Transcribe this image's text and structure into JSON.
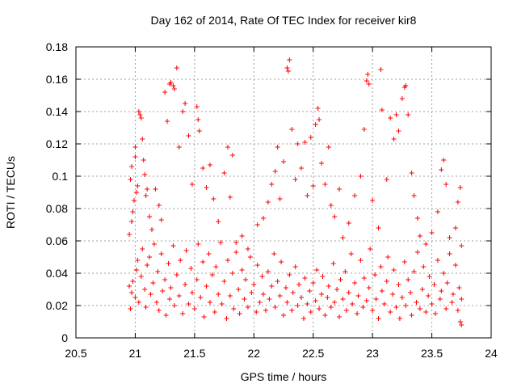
{
  "chart_data": {
    "type": "scatter",
    "title": "Day 162 of 2014, Rate Of TEC Index for receiver kir8",
    "xlabel": "GPS time / hours",
    "ylabel": "ROTI / TECUs",
    "xlim": [
      20.5,
      24
    ],
    "ylim": [
      0,
      0.18
    ],
    "x_ticks": [
      20.5,
      21,
      21.5,
      22,
      22.5,
      23,
      23.5,
      24
    ],
    "x_tick_labels": [
      "20.5",
      "21",
      "21.5",
      "22",
      "22.5",
      "23",
      "23.5",
      "24"
    ],
    "y_ticks": [
      0,
      0.02,
      0.04,
      0.06,
      0.08,
      0.1,
      0.12,
      0.14,
      0.16,
      0.18
    ],
    "y_tick_labels": [
      "0",
      "0.02",
      "0.04",
      "0.06",
      "0.08",
      "0.1",
      "0.12",
      "0.14",
      "0.16",
      "0.18"
    ],
    "grid": true,
    "marker": "+",
    "color": "#ff0000",
    "series": [
      {
        "name": "ROTI",
        "points": [
          [
            20.95,
            0.064
          ],
          [
            20.96,
            0.098
          ],
          [
            20.97,
            0.106
          ],
          [
            20.97,
            0.072
          ],
          [
            20.98,
            0.078
          ],
          [
            20.99,
            0.085
          ],
          [
            21.0,
            0.118
          ],
          [
            21.0,
            0.112
          ],
          [
            21.01,
            0.09
          ],
          [
            21.02,
            0.094
          ],
          [
            21.03,
            0.14
          ],
          [
            21.04,
            0.138
          ],
          [
            21.05,
            0.136
          ],
          [
            21.06,
            0.123
          ],
          [
            21.07,
            0.11
          ],
          [
            21.08,
            0.101
          ],
          [
            21.09,
            0.088
          ],
          [
            21.1,
            0.092
          ],
          [
            21.12,
            0.075
          ],
          [
            21.14,
            0.067
          ],
          [
            21.17,
            0.092
          ],
          [
            21.2,
            0.082
          ],
          [
            21.22,
            0.073
          ],
          [
            21.25,
            0.152
          ],
          [
            21.27,
            0.134
          ],
          [
            21.29,
            0.157
          ],
          [
            21.3,
            0.158
          ],
          [
            21.32,
            0.156
          ],
          [
            21.33,
            0.154
          ],
          [
            21.35,
            0.167
          ],
          [
            21.37,
            0.118
          ],
          [
            21.4,
            0.14
          ],
          [
            21.42,
            0.145
          ],
          [
            21.45,
            0.125
          ],
          [
            21.48,
            0.095
          ],
          [
            21.52,
            0.143
          ],
          [
            21.53,
            0.135
          ],
          [
            21.54,
            0.128
          ],
          [
            21.57,
            0.105
          ],
          [
            21.6,
            0.093
          ],
          [
            21.63,
            0.107
          ],
          [
            21.66,
            0.086
          ],
          [
            21.7,
            0.072
          ],
          [
            21.75,
            0.102
          ],
          [
            21.78,
            0.118
          ],
          [
            21.8,
            0.087
          ],
          [
            21.82,
            0.113
          ],
          [
            21.85,
            0.059
          ],
          [
            21.9,
            0.063
          ],
          [
            21.95,
            0.055
          ],
          [
            22.03,
            0.07
          ],
          [
            22.08,
            0.074
          ],
          [
            22.12,
            0.084
          ],
          [
            22.15,
            0.095
          ],
          [
            22.18,
            0.103
          ],
          [
            22.2,
            0.118
          ],
          [
            22.22,
            0.086
          ],
          [
            22.25,
            0.109
          ],
          [
            22.28,
            0.167
          ],
          [
            22.29,
            0.165
          ],
          [
            22.3,
            0.172
          ],
          [
            22.32,
            0.129
          ],
          [
            22.35,
            0.098
          ],
          [
            22.37,
            0.12
          ],
          [
            22.4,
            0.105
          ],
          [
            22.43,
            0.121
          ],
          [
            22.45,
            0.088
          ],
          [
            22.48,
            0.124
          ],
          [
            22.5,
            0.094
          ],
          [
            22.52,
            0.132
          ],
          [
            22.54,
            0.142
          ],
          [
            22.55,
            0.135
          ],
          [
            22.57,
            0.108
          ],
          [
            22.6,
            0.095
          ],
          [
            22.63,
            0.118
          ],
          [
            22.65,
            0.082
          ],
          [
            22.68,
            0.075
          ],
          [
            22.72,
            0.092
          ],
          [
            22.75,
            0.062
          ],
          [
            22.8,
            0.071
          ],
          [
            22.85,
            0.088
          ],
          [
            22.9,
            0.1
          ],
          [
            22.93,
            0.129
          ],
          [
            22.95,
            0.159
          ],
          [
            22.96,
            0.163
          ],
          [
            22.97,
            0.157
          ],
          [
            23.0,
            0.085
          ],
          [
            23.05,
            0.068
          ],
          [
            23.07,
            0.166
          ],
          [
            23.08,
            0.141
          ],
          [
            23.12,
            0.098
          ],
          [
            23.15,
            0.136
          ],
          [
            23.18,
            0.123
          ],
          [
            23.2,
            0.138
          ],
          [
            23.22,
            0.128
          ],
          [
            23.25,
            0.148
          ],
          [
            23.27,
            0.155
          ],
          [
            23.28,
            0.156
          ],
          [
            23.3,
            0.138
          ],
          [
            23.33,
            0.102
          ],
          [
            23.35,
            0.088
          ],
          [
            23.38,
            0.074
          ],
          [
            23.4,
            0.063
          ],
          [
            23.45,
            0.058
          ],
          [
            23.5,
            0.065
          ],
          [
            23.55,
            0.078
          ],
          [
            23.58,
            0.104
          ],
          [
            23.6,
            0.11
          ],
          [
            23.62,
            0.095
          ],
          [
            23.65,
            0.062
          ],
          [
            23.7,
            0.068
          ],
          [
            23.72,
            0.084
          ],
          [
            23.74,
            0.093
          ],
          [
            23.75,
            0.057
          ],
          [
            20.95,
            0.032
          ],
          [
            20.96,
            0.018
          ],
          [
            20.97,
            0.028
          ],
          [
            20.98,
            0.035
          ],
          [
            21.0,
            0.025
          ],
          [
            21.01,
            0.042
          ],
          [
            21.02,
            0.048
          ],
          [
            21.03,
            0.022
          ],
          [
            21.05,
            0.038
          ],
          [
            21.06,
            0.055
          ],
          [
            21.08,
            0.03
          ],
          [
            21.09,
            0.019
          ],
          [
            21.1,
            0.045
          ],
          [
            21.12,
            0.05
          ],
          [
            21.13,
            0.027
          ],
          [
            21.15,
            0.034
          ],
          [
            21.16,
            0.058
          ],
          [
            21.18,
            0.022
          ],
          [
            21.19,
            0.041
          ],
          [
            21.2,
            0.017
          ],
          [
            21.22,
            0.052
          ],
          [
            21.23,
            0.029
          ],
          [
            21.25,
            0.036
          ],
          [
            21.26,
            0.014
          ],
          [
            21.28,
            0.046
          ],
          [
            21.29,
            0.024
          ],
          [
            21.3,
            0.031
          ],
          [
            21.32,
            0.057
          ],
          [
            21.33,
            0.02
          ],
          [
            21.35,
            0.039
          ],
          [
            21.37,
            0.026
          ],
          [
            21.38,
            0.048
          ],
          [
            21.4,
            0.015
          ],
          [
            21.42,
            0.033
          ],
          [
            21.43,
            0.054
          ],
          [
            21.45,
            0.021
          ],
          [
            21.47,
            0.043
          ],
          [
            21.48,
            0.028
          ],
          [
            21.5,
            0.018
          ],
          [
            21.52,
            0.036
          ],
          [
            21.53,
            0.058
          ],
          [
            21.55,
            0.025
          ],
          [
            21.57,
            0.047
          ],
          [
            21.58,
            0.013
          ],
          [
            21.6,
            0.032
          ],
          [
            21.62,
            0.052
          ],
          [
            21.63,
            0.022
          ],
          [
            21.65,
            0.039
          ],
          [
            21.67,
            0.016
          ],
          [
            21.68,
            0.044
          ],
          [
            21.7,
            0.027
          ],
          [
            21.72,
            0.059
          ],
          [
            21.73,
            0.021
          ],
          [
            21.75,
            0.035
          ],
          [
            21.77,
            0.012
          ],
          [
            21.78,
            0.048
          ],
          [
            21.8,
            0.026
          ],
          [
            21.82,
            0.04
          ],
          [
            21.83,
            0.018
          ],
          [
            21.85,
            0.053
          ],
          [
            21.87,
            0.03
          ],
          [
            21.88,
            0.015
          ],
          [
            21.9,
            0.042
          ],
          [
            21.92,
            0.024
          ],
          [
            21.93,
            0.036
          ],
          [
            21.95,
            0.019
          ],
          [
            21.97,
            0.05
          ],
          [
            21.98,
            0.028
          ],
          [
            22.0,
            0.033
          ],
          [
            22.02,
            0.016
          ],
          [
            22.03,
            0.045
          ],
          [
            22.05,
            0.022
          ],
          [
            22.07,
            0.038
          ],
          [
            22.08,
            0.027
          ],
          [
            22.1,
            0.017
          ],
          [
            22.12,
            0.041
          ],
          [
            22.13,
            0.024
          ],
          [
            22.15,
            0.032
          ],
          [
            22.17,
            0.052
          ],
          [
            22.18,
            0.019
          ],
          [
            22.2,
            0.035
          ],
          [
            22.22,
            0.026
          ],
          [
            22.23,
            0.047
          ],
          [
            22.25,
            0.014
          ],
          [
            22.27,
            0.031
          ],
          [
            22.28,
            0.022
          ],
          [
            22.3,
            0.039
          ],
          [
            22.32,
            0.017
          ],
          [
            22.33,
            0.028
          ],
          [
            22.35,
            0.044
          ],
          [
            22.37,
            0.02
          ],
          [
            22.38,
            0.033
          ],
          [
            22.4,
            0.025
          ],
          [
            22.42,
            0.012
          ],
          [
            22.43,
            0.037
          ],
          [
            22.45,
            0.021
          ],
          [
            22.47,
            0.029
          ],
          [
            22.48,
            0.016
          ],
          [
            22.5,
            0.034
          ],
          [
            22.52,
            0.023
          ],
          [
            22.53,
            0.042
          ],
          [
            22.55,
            0.018
          ],
          [
            22.57,
            0.027
          ],
          [
            22.58,
            0.038
          ],
          [
            22.6,
            0.014
          ],
          [
            22.62,
            0.025
          ],
          [
            22.63,
            0.032
          ],
          [
            22.65,
            0.019
          ],
          [
            22.67,
            0.046
          ],
          [
            22.68,
            0.022
          ],
          [
            22.7,
            0.03
          ],
          [
            22.72,
            0.013
          ],
          [
            22.73,
            0.036
          ],
          [
            22.75,
            0.024
          ],
          [
            22.77,
            0.041
          ],
          [
            22.78,
            0.017
          ],
          [
            22.8,
            0.028
          ],
          [
            22.82,
            0.052
          ],
          [
            22.83,
            0.021
          ],
          [
            22.85,
            0.034
          ],
          [
            22.87,
            0.015
          ],
          [
            22.88,
            0.026
          ],
          [
            22.9,
            0.048
          ],
          [
            22.92,
            0.019
          ],
          [
            22.93,
            0.037
          ],
          [
            22.95,
            0.023
          ],
          [
            22.97,
            0.031
          ],
          [
            22.98,
            0.055
          ],
          [
            23.0,
            0.017
          ],
          [
            23.02,
            0.039
          ],
          [
            23.03,
            0.024
          ],
          [
            23.05,
            0.012
          ],
          [
            23.07,
            0.044
          ],
          [
            23.08,
            0.029
          ],
          [
            23.1,
            0.021
          ],
          [
            23.12,
            0.035
          ],
          [
            23.13,
            0.05
          ],
          [
            23.15,
            0.016
          ],
          [
            23.17,
            0.027
          ],
          [
            23.18,
            0.042
          ],
          [
            23.2,
            0.019
          ],
          [
            23.22,
            0.033
          ],
          [
            23.23,
            0.012
          ],
          [
            23.25,
            0.025
          ],
          [
            23.27,
            0.047
          ],
          [
            23.28,
            0.02
          ],
          [
            23.3,
            0.036
          ],
          [
            23.32,
            0.028
          ],
          [
            23.33,
            0.014
          ],
          [
            23.35,
            0.041
          ],
          [
            23.37,
            0.022
          ],
          [
            23.38,
            0.053
          ],
          [
            23.4,
            0.018
          ],
          [
            23.42,
            0.03
          ],
          [
            23.43,
            0.044
          ],
          [
            23.45,
            0.016
          ],
          [
            23.47,
            0.026
          ],
          [
            23.48,
            0.038
          ],
          [
            23.5,
            0.021
          ],
          [
            23.52,
            0.033
          ],
          [
            23.53,
            0.015
          ],
          [
            23.55,
            0.048
          ],
          [
            23.57,
            0.024
          ],
          [
            23.58,
            0.029
          ],
          [
            23.6,
            0.04
          ],
          [
            23.62,
            0.018
          ],
          [
            23.63,
            0.034
          ],
          [
            23.65,
            0.052
          ],
          [
            23.67,
            0.022
          ],
          [
            23.68,
            0.027
          ],
          [
            23.7,
            0.045
          ],
          [
            23.72,
            0.017
          ],
          [
            23.73,
            0.031
          ],
          [
            23.74,
            0.01
          ],
          [
            23.75,
            0.024
          ],
          [
            23.75,
            0.008
          ]
        ]
      }
    ]
  }
}
